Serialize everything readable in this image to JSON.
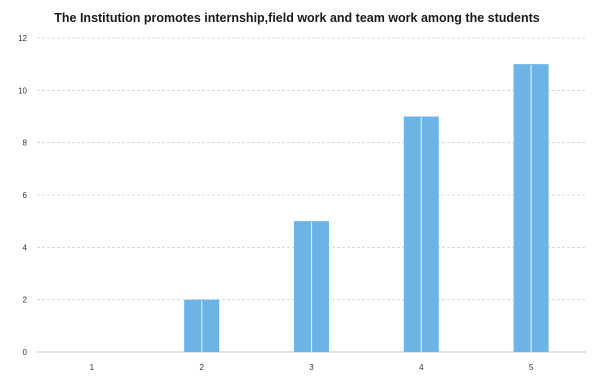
{
  "chart_data": {
    "type": "bar",
    "title": "The Institution promotes internship,field work and team work among the students",
    "xlabel": "",
    "ylabel": "",
    "categories": [
      "1",
      "2",
      "3",
      "4",
      "5"
    ],
    "values": [
      0,
      2,
      5,
      9,
      11
    ],
    "ylim": [
      0,
      12
    ],
    "yticks": [
      "0",
      "2",
      "4",
      "6",
      "8",
      "10",
      "12"
    ],
    "grid": true,
    "legend": "none",
    "bar_color": "#6cb4e8"
  }
}
